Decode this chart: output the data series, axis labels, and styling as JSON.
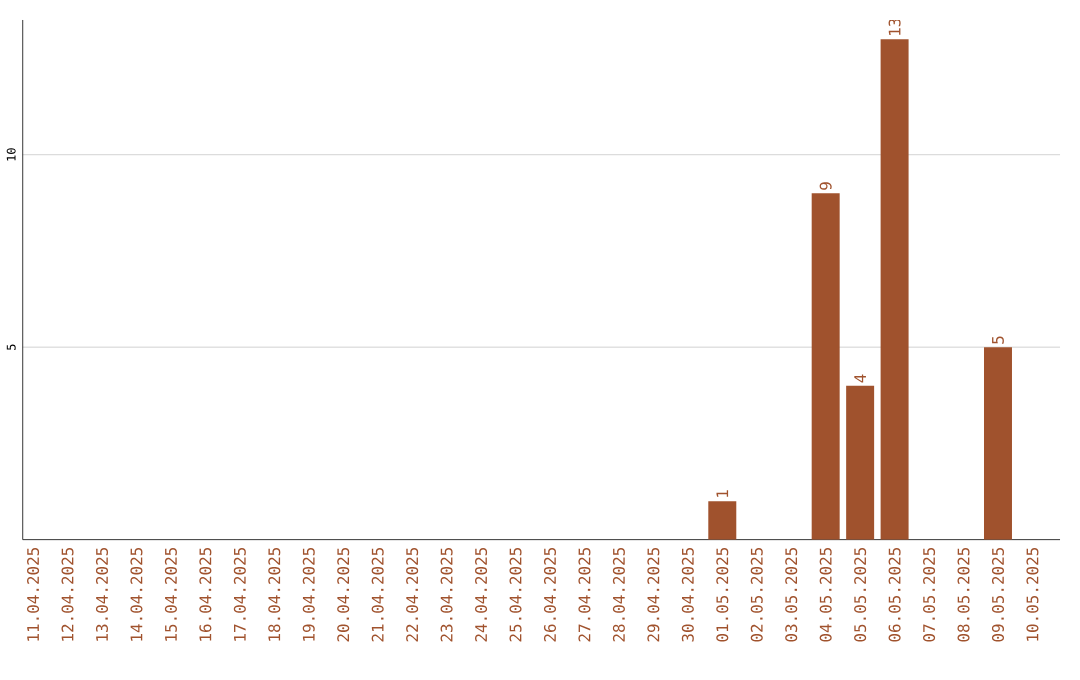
{
  "chart_data": {
    "type": "bar",
    "categories": [
      "11.04.2025",
      "12.04.2025",
      "13.04.2025",
      "14.04.2025",
      "15.04.2025",
      "16.04.2025",
      "17.04.2025",
      "18.04.2025",
      "19.04.2025",
      "20.04.2025",
      "21.04.2025",
      "22.04.2025",
      "23.04.2025",
      "24.04.2025",
      "25.04.2025",
      "26.04.2025",
      "27.04.2025",
      "28.04.2025",
      "29.04.2025",
      "30.04.2025",
      "01.05.2025",
      "02.05.2025",
      "03.05.2025",
      "04.05.2025",
      "05.05.2025",
      "06.05.2025",
      "07.05.2025",
      "08.05.2025",
      "09.05.2025",
      "10.05.2025"
    ],
    "values": [
      0,
      0,
      0,
      0,
      0,
      0,
      0,
      0,
      0,
      0,
      0,
      0,
      0,
      0,
      0,
      0,
      0,
      0,
      0,
      0,
      1,
      0,
      0,
      9,
      4,
      13,
      0,
      0,
      5,
      0
    ],
    "value_labels": [
      null,
      null,
      null,
      null,
      null,
      null,
      null,
      null,
      null,
      null,
      null,
      null,
      null,
      null,
      null,
      null,
      null,
      null,
      null,
      null,
      "1",
      null,
      null,
      "9",
      "4",
      "13",
      null,
      null,
      "5",
      null
    ],
    "color": "#a0522d",
    "ylim": [
      0,
      13.5
    ],
    "yticks": [
      5,
      10
    ],
    "grid": "y"
  }
}
